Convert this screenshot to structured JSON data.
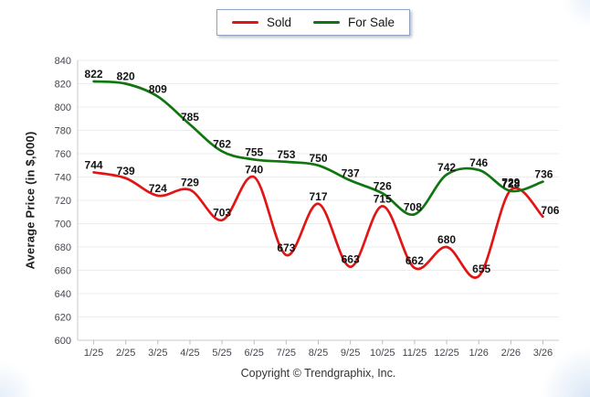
{
  "legend": {
    "items": [
      {
        "label": "Sold",
        "color": "#e01616"
      },
      {
        "label": "For Sale",
        "color": "#0f750f"
      }
    ]
  },
  "footer": {
    "copyright": "Copyright © Trendgraphix, Inc."
  },
  "chart_data": {
    "type": "line",
    "title": "",
    "xlabel": "",
    "ylabel": "Average Price (in $,000)",
    "categories": [
      "1/25",
      "2/25",
      "3/25",
      "4/25",
      "5/25",
      "6/25",
      "7/25",
      "8/25",
      "9/25",
      "10/25",
      "11/25",
      "12/25",
      "1/26",
      "2/26",
      "3/26"
    ],
    "series": [
      {
        "name": "Sold",
        "color": "#e01616",
        "values": [
          744,
          739,
          724,
          729,
          703,
          740,
          673,
          717,
          663,
          715,
          662,
          680,
          655,
          729,
          706
        ],
        "label_offsets": {
          "12": [
            3,
            0
          ],
          "14": [
            8,
            1
          ]
        }
      },
      {
        "name": "For Sale",
        "color": "#0f750f",
        "values": [
          822,
          820,
          809,
          785,
          762,
          755,
          753,
          750,
          737,
          726,
          708,
          742,
          746,
          728,
          736
        ],
        "label_offsets": {
          "10": [
            -2,
            0
          ],
          "14": [
            1,
            0
          ]
        }
      }
    ],
    "ylim": [
      600,
      840
    ],
    "ytick_step": 20,
    "yticks": [
      600,
      620,
      640,
      660,
      680,
      700,
      720,
      740,
      760,
      780,
      800,
      820,
      840
    ],
    "grid": true,
    "data_labels": true,
    "legend_position": "top",
    "colors": {
      "gridline": "#ececec",
      "axis_line": "#c9c9c9",
      "tick": "#bdbdbd",
      "axis_text": "#45454e",
      "data_label_text": "#141414"
    }
  }
}
